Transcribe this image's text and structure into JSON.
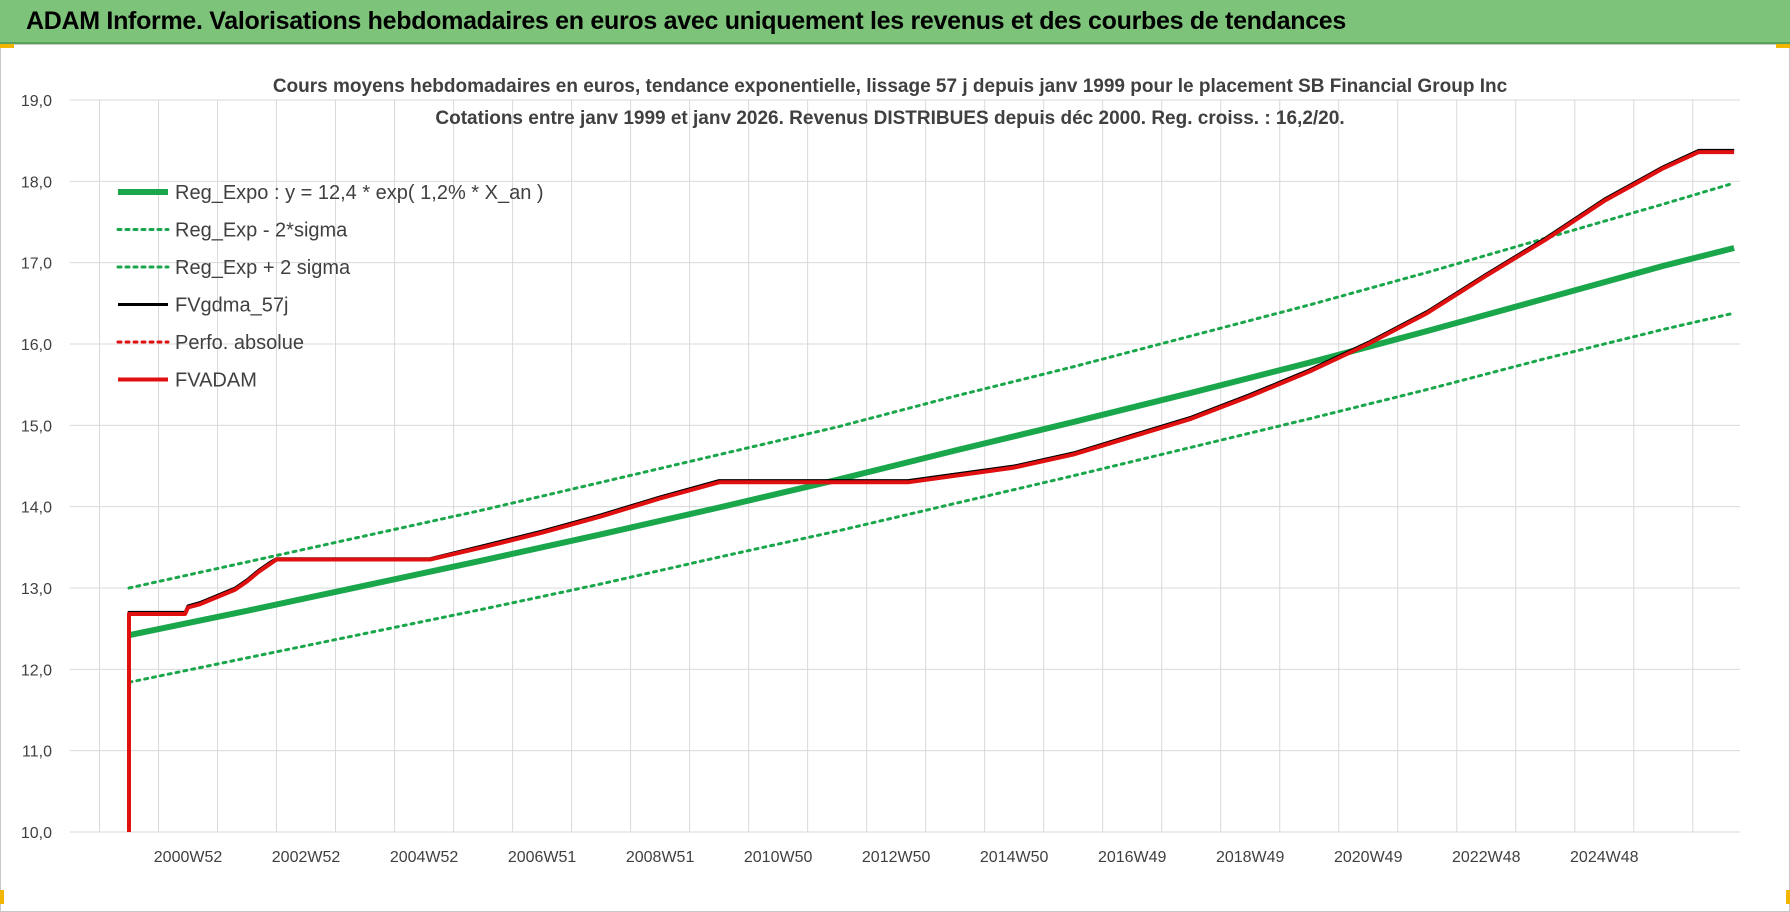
{
  "header": {
    "title": "ADAM Informe. Valorisations hebdomadaires en euros avec uniquement les revenus et des courbes de tendances"
  },
  "colors": {
    "header_bg": "#7dc47a",
    "reg_green": "#1aa64b",
    "red": "#e01010",
    "black": "#000000",
    "grid": "#d9d9d9"
  },
  "chart_data": {
    "type": "line",
    "title_line1": "Cours moyens hebdomadaires en euros, tendance exponentielle, lissage 57 j depuis janv 1999 pour le placement SB Financial Group Inc",
    "title_line2": "Cotations entre janv 1999 et janv 2026. Revenus DISTRIBUES depuis déc 2000.  Reg. croiss. : 16,2/20.",
    "xlabel": "",
    "ylabel": "",
    "ylim": [
      10,
      19
    ],
    "xlim": [
      1998.0,
      2026.3
    ],
    "grid": true,
    "legend_position": "top-left",
    "y_ticks": [
      "10,0",
      "11,0",
      "12,0",
      "13,0",
      "14,0",
      "15,0",
      "16,0",
      "17,0",
      "18,0",
      "19,0"
    ],
    "x_ticks": [
      {
        "label": "2000W52",
        "x": 2000.0
      },
      {
        "label": "2002W52",
        "x": 2002.0
      },
      {
        "label": "2004W52",
        "x": 2004.0
      },
      {
        "label": "2006W51",
        "x": 2006.0
      },
      {
        "label": "2008W51",
        "x": 2008.0
      },
      {
        "label": "2010W50",
        "x": 2010.0
      },
      {
        "label": "2012W50",
        "x": 2012.0
      },
      {
        "label": "2014W50",
        "x": 2014.0
      },
      {
        "label": "2016W49",
        "x": 2016.0
      },
      {
        "label": "2018W49",
        "x": 2018.0
      },
      {
        "label": "2020W49",
        "x": 2020.0
      },
      {
        "label": "2022W48",
        "x": 2022.0
      },
      {
        "label": "2024W48",
        "x": 2024.0
      }
    ],
    "series": [
      {
        "name": "Reg_Expo : y = 12,4 * exp( 1,2% *  X_an )",
        "style": "solid-thick",
        "color": "#1aa64b",
        "x": [
          1999.0,
          2001.0,
          2003.0,
          2005.0,
          2007.0,
          2009.0,
          2011.0,
          2013.0,
          2015.0,
          2017.0,
          2019.0,
          2021.0,
          2023.0,
          2025.0,
          2026.2
        ],
        "y": [
          12.42,
          12.72,
          13.03,
          13.34,
          13.66,
          13.99,
          14.33,
          14.69,
          15.04,
          15.4,
          15.77,
          16.16,
          16.56,
          16.96,
          17.18
        ]
      },
      {
        "name": "Reg_Exp - 2*sigma",
        "style": "dotted",
        "color": "#1aa64b",
        "x": [
          1999.0,
          2001.0,
          2003.0,
          2005.0,
          2007.0,
          2009.0,
          2011.0,
          2013.0,
          2015.0,
          2017.0,
          2019.0,
          2021.0,
          2023.0,
          2025.0,
          2026.2
        ],
        "y": [
          11.84,
          12.14,
          12.44,
          12.74,
          13.05,
          13.38,
          13.7,
          14.04,
          14.38,
          14.73,
          15.08,
          15.44,
          15.82,
          16.18,
          16.38
        ]
      },
      {
        "name": "Reg_Exp + 2 sigma",
        "style": "dotted",
        "color": "#1aa64b",
        "x": [
          1999.0,
          2001.0,
          2003.0,
          2005.0,
          2007.0,
          2009.0,
          2011.0,
          2013.0,
          2015.0,
          2017.0,
          2019.0,
          2021.0,
          2023.0,
          2025.0,
          2026.2
        ],
        "y": [
          13.0,
          13.32,
          13.64,
          13.96,
          14.3,
          14.64,
          14.98,
          15.36,
          15.72,
          16.1,
          16.48,
          16.88,
          17.3,
          17.72,
          17.98
        ]
      },
      {
        "name": "FVgdma_57j",
        "style": "solid",
        "color": "#000000",
        "x": [
          1999.0,
          1999.0,
          1999.05,
          1999.95,
          2000.0,
          2000.2,
          2000.4,
          2000.6,
          2000.8,
          2001.0,
          2001.2,
          2001.4,
          2001.5,
          2004.1,
          2005.0,
          2006.0,
          2007.0,
          2008.0,
          2009.0,
          2010.0,
          2011.0,
          2012.2,
          2013.0,
          2014.0,
          2015.0,
          2016.0,
          2017.0,
          2018.0,
          2019.0,
          2020.0,
          2021.0,
          2022.0,
          2023.0,
          2024.0,
          2025.0,
          2025.6,
          2026.2
        ],
        "y": [
          10.0,
          12.7,
          12.7,
          12.7,
          12.78,
          12.82,
          12.88,
          12.94,
          13.0,
          13.1,
          13.22,
          13.32,
          13.36,
          13.36,
          13.52,
          13.7,
          13.9,
          14.12,
          14.32,
          14.32,
          14.32,
          14.32,
          14.4,
          14.5,
          14.66,
          14.88,
          15.1,
          15.38,
          15.68,
          16.02,
          16.4,
          16.86,
          17.3,
          17.78,
          18.18,
          18.38,
          18.38
        ]
      },
      {
        "name": "Perfo. absolue",
        "style": "dotted",
        "color": "#e01010",
        "x": [],
        "y": []
      },
      {
        "name": "FVADAM",
        "style": "solid-thick",
        "color": "#e01010",
        "x": [
          1999.0,
          1999.0,
          1999.05,
          1999.95,
          2000.0,
          2000.2,
          2000.4,
          2000.6,
          2000.8,
          2001.0,
          2001.2,
          2001.4,
          2001.5,
          2004.1,
          2005.0,
          2006.0,
          2007.0,
          2008.0,
          2009.0,
          2010.0,
          2011.0,
          2012.2,
          2013.0,
          2014.0,
          2015.0,
          2016.0,
          2017.0,
          2018.0,
          2019.0,
          2020.0,
          2021.0,
          2022.0,
          2023.0,
          2024.0,
          2025.0,
          2025.6,
          2026.2
        ],
        "y": [
          10.0,
          12.68,
          12.68,
          12.68,
          12.76,
          12.8,
          12.86,
          12.92,
          12.98,
          13.08,
          13.2,
          13.3,
          13.35,
          13.35,
          13.5,
          13.68,
          13.88,
          14.1,
          14.3,
          14.3,
          14.3,
          14.3,
          14.38,
          14.48,
          14.64,
          14.86,
          15.08,
          15.36,
          15.66,
          16.0,
          16.38,
          16.84,
          17.28,
          17.76,
          18.16,
          18.36,
          18.36
        ]
      }
    ]
  }
}
